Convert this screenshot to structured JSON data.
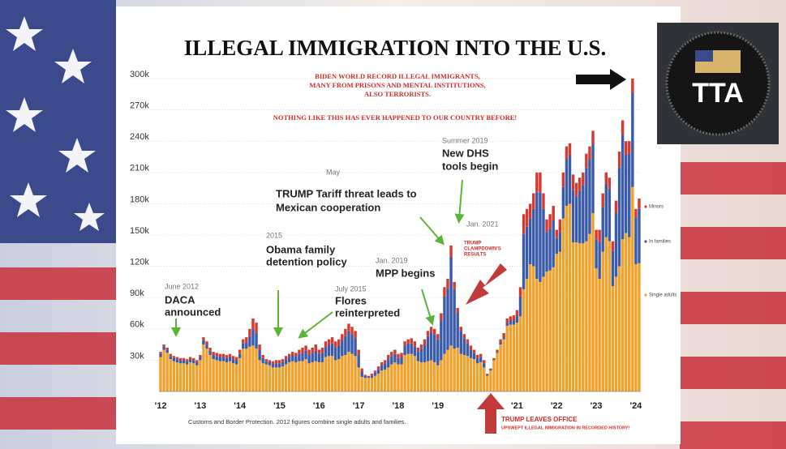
{
  "chart_data": {
    "type": "bar",
    "stacked": true,
    "title": "ILLEGAL IMMIGRATION INTO THE U.S.",
    "subtitle": [
      "BIDEN WORLD RECORD ILLEGAL IMMIGRANTS,",
      "MANY FROM PRISONS AND MENTAL INSTITUTIONS,",
      "ALSO TERRORISTS."
    ],
    "headline": "NOTHING LIKE THIS HAS EVER HAPPENED TO OUR COUNTRY BEFORE!",
    "source": "Customs and Border Protection. 2012 figures combine single adults and families.",
    "logo": "TTA",
    "annotations": [
      {
        "lines": [
          "June 2012"
        ]
      },
      {
        "lines": [
          "DACA",
          "announced"
        ]
      },
      {
        "lines": [
          "2015"
        ]
      },
      {
        "lines": [
          "Obama family",
          "detention policy"
        ]
      },
      {
        "lines": [
          "July 2015"
        ]
      },
      {
        "lines": [
          "Flores",
          "reinterpreted"
        ]
      },
      {
        "lines": [
          "May"
        ]
      },
      {
        "lines": [
          "TRUMP Tariff threat leads to",
          "Mexican cooperation"
        ]
      },
      {
        "lines": [
          "Summer 2019"
        ]
      },
      {
        "lines": [
          "New DHS",
          "tools begin"
        ]
      },
      {
        "lines": [
          "Jan. 2019"
        ]
      },
      {
        "lines": [
          "MPP begins"
        ]
      },
      {
        "lines": [
          "Jan. 2021"
        ]
      },
      {
        "lines": [
          "TRUMP",
          "CLAMPDOWN'S",
          "RESULTS"
        ]
      },
      {
        "lines": [
          "TRUMP LEAVES OFFICE"
        ]
      },
      {
        "lines": [
          "UPSWEPT ILLEGAL IMMIGRATION IN RECORDED HISTORY!"
        ]
      }
    ],
    "categories": [
      "'12",
      null,
      null,
      null,
      null,
      null,
      null,
      null,
      null,
      null,
      null,
      null,
      "'13",
      null,
      null,
      null,
      null,
      null,
      null,
      null,
      null,
      null,
      null,
      null,
      "'14",
      null,
      null,
      null,
      null,
      null,
      null,
      null,
      null,
      null,
      null,
      null,
      "'15",
      null,
      null,
      null,
      null,
      null,
      null,
      null,
      null,
      null,
      null,
      null,
      "'16",
      null,
      null,
      null,
      null,
      null,
      null,
      null,
      null,
      null,
      null,
      null,
      "'17",
      null,
      null,
      null,
      null,
      null,
      null,
      null,
      null,
      null,
      null,
      null,
      "'18",
      null,
      null,
      null,
      null,
      null,
      null,
      null,
      null,
      null,
      null,
      null,
      "'19",
      null,
      null,
      null,
      null,
      null,
      null,
      null,
      null,
      null,
      null,
      null,
      null,
      null,
      null,
      null,
      null,
      null,
      null,
      null,
      null,
      null,
      null,
      null,
      "'21",
      null,
      null,
      null,
      null,
      null,
      null,
      null,
      null,
      null,
      null,
      null,
      "'22",
      null,
      null,
      null,
      null,
      null,
      null,
      null,
      null,
      null,
      null,
      null,
      "'23",
      null,
      null,
      null,
      null,
      null,
      null,
      null,
      null,
      null,
      null,
      null,
      "'24",
      null
    ],
    "series": [
      {
        "name": "Single adults",
        "color": "#f0a22e",
        "values": [
          33000,
          40000,
          37000,
          31000,
          29000,
          28000,
          27000,
          27000,
          26000,
          28000,
          27000,
          25000,
          30000,
          45000,
          41000,
          35000,
          31000,
          30000,
          29000,
          29000,
          28000,
          29000,
          27000,
          26000,
          32000,
          41000,
          41000,
          43000,
          44000,
          41000,
          30000,
          27000,
          26000,
          25000,
          23000,
          23000,
          23000,
          24000,
          26000,
          28000,
          29000,
          28000,
          29000,
          29000,
          31000,
          27000,
          28000,
          29000,
          28000,
          28000,
          33000,
          34000,
          34000,
          30000,
          31000,
          34000,
          35000,
          38000,
          36000,
          34000,
          23000,
          14000,
          13000,
          13000,
          13000,
          15000,
          17000,
          20000,
          21000,
          23000,
          26000,
          28000,
          26000,
          26000,
          35000,
          36000,
          36000,
          34000,
          29000,
          28000,
          28000,
          29000,
          30000,
          28000,
          25000,
          30000,
          36000,
          40000,
          44000,
          41000,
          42000,
          36000,
          35000,
          34000,
          32000,
          31000,
          27000,
          28000,
          23000,
          15000,
          20000,
          30000,
          37000,
          45000,
          50000,
          63000,
          64000,
          64000,
          66000,
          72000,
          98000,
          108000,
          122000,
          120000,
          108000,
          105000,
          110000,
          115000,
          116000,
          119000,
          132000,
          134000,
          166000,
          178000,
          180000,
          143000,
          143000,
          142000,
          142000,
          144000,
          151000,
          171000,
          118000,
          108000,
          134000,
          148000,
          144000,
          101000,
          110000,
          120000,
          146000,
          152000,
          148000,
          196000,
          122000,
          123000
        ]
      },
      {
        "name": "In families",
        "color": "#3a5ba8",
        "values": [
          3000,
          3000,
          3000,
          3000,
          3000,
          3000,
          3000,
          3000,
          3000,
          3000,
          3000,
          3000,
          3000,
          4000,
          4000,
          4000,
          4000,
          4000,
          4000,
          4000,
          4000,
          4000,
          4000,
          4000,
          4000,
          5000,
          6000,
          10000,
          16000,
          15000,
          10000,
          5000,
          3000,
          3000,
          3000,
          4000,
          4000,
          4000,
          5000,
          5000,
          6000,
          6000,
          7000,
          8000,
          8000,
          8000,
          9000,
          10000,
          8000,
          9000,
          10000,
          11000,
          12000,
          12000,
          13000,
          15000,
          18000,
          20000,
          19000,
          17000,
          12000,
          5000,
          2000,
          1000,
          2000,
          3000,
          4000,
          5000,
          6000,
          8000,
          8000,
          8000,
          6000,
          7000,
          9000,
          10000,
          10000,
          9000,
          9000,
          13000,
          17000,
          24000,
          27000,
          27000,
          25000,
          38000,
          55000,
          59000,
          85000,
          57000,
          33000,
          22000,
          16000,
          12000,
          8000,
          6000,
          5000,
          5000,
          4000,
          1000,
          1000,
          1000,
          1000,
          2000,
          2000,
          3000,
          4000,
          4000,
          7000,
          19000,
          53000,
          50000,
          44000,
          55000,
          83000,
          86000,
          65000,
          38000,
          40000,
          45000,
          15000,
          19000,
          30000,
          45000,
          47000,
          50000,
          44000,
          50000,
          56000,
          70000,
          72000,
          66000,
          28000,
          35000,
          43000,
          51000,
          50000,
          34000,
          61000,
          95000,
          100000,
          75000,
          80000,
          90000,
          45000,
          52000
        ]
      },
      {
        "name": "Minors",
        "color": "#d43a2f",
        "values": [
          2000,
          2000,
          2000,
          2000,
          2000,
          2000,
          2000,
          2000,
          2000,
          2000,
          2000,
          2000,
          2000,
          3000,
          3000,
          3000,
          3000,
          3000,
          3000,
          3000,
          3000,
          3000,
          3000,
          3000,
          4000,
          4000,
          5000,
          7000,
          10000,
          10000,
          5000,
          3000,
          2000,
          2000,
          3000,
          3000,
          3000,
          3000,
          3000,
          3000,
          3000,
          3000,
          4000,
          5000,
          5000,
          5000,
          5000,
          6000,
          4000,
          5000,
          5000,
          5000,
          6000,
          6000,
          6000,
          6000,
          7000,
          7000,
          7000,
          7000,
          5000,
          3000,
          1000,
          1000,
          2000,
          2000,
          3000,
          3000,
          3000,
          4000,
          4000,
          4000,
          4000,
          4000,
          4000,
          4000,
          5000,
          5000,
          4000,
          4000,
          5000,
          5000,
          5000,
          5000,
          5000,
          7000,
          9000,
          9000,
          11000,
          7000,
          5000,
          4000,
          4000,
          4000,
          4000,
          3000,
          3000,
          3000,
          3000,
          1000,
          1000,
          1000,
          2000,
          3000,
          4000,
          4000,
          4000,
          5000,
          5000,
          9000,
          19000,
          17000,
          14000,
          15000,
          19000,
          19000,
          15000,
          12000,
          14000,
          14000,
          8000,
          12000,
          14000,
          12000,
          11000,
          15000,
          13000,
          13000,
          12000,
          14000,
          12000,
          13000,
          9000,
          12000,
          13000,
          11000,
          11000,
          9000,
          12000,
          15000,
          14000,
          13000,
          12000,
          14000,
          8000,
          10000
        ]
      }
    ],
    "ylim": [
      0,
      300000
    ],
    "yticks": [
      {
        "value": 30000,
        "label": "30k"
      },
      {
        "value": 60000,
        "label": "60k"
      },
      {
        "value": 90000,
        "label": "90k"
      },
      {
        "value": 120000,
        "label": "120k"
      },
      {
        "value": 150000,
        "label": "150k"
      },
      {
        "value": 180000,
        "label": "180k"
      },
      {
        "value": 210000,
        "label": "210k"
      },
      {
        "value": 240000,
        "label": "240k"
      },
      {
        "value": 270000,
        "label": "270k"
      },
      {
        "value": 300000,
        "label": "300k"
      }
    ],
    "grid": true,
    "legend": "right"
  }
}
